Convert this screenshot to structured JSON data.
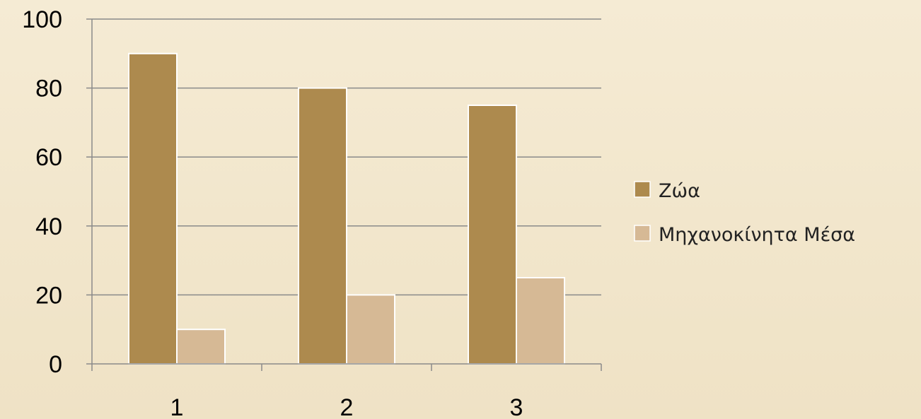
{
  "chart_data": {
    "type": "bar",
    "categories": [
      "1",
      "2",
      "3"
    ],
    "series": [
      {
        "name": "Ζώα",
        "values": [
          90,
          80,
          75
        ],
        "color": "#ad8a4e"
      },
      {
        "name": "Μηχανοκίνητα Μέσα",
        "values": [
          10,
          20,
          25
        ],
        "color": "#d6b995"
      }
    ],
    "title": "",
    "xlabel": "",
    "ylabel": "",
    "ylim": [
      0,
      100
    ],
    "yticks": [
      0,
      20,
      40,
      60,
      80,
      100
    ],
    "grid": true,
    "legend_position": "right"
  },
  "colors": {
    "background": "#f3e7cd",
    "gridline": "#8a8a8a",
    "bar_border": "#ffffff"
  }
}
